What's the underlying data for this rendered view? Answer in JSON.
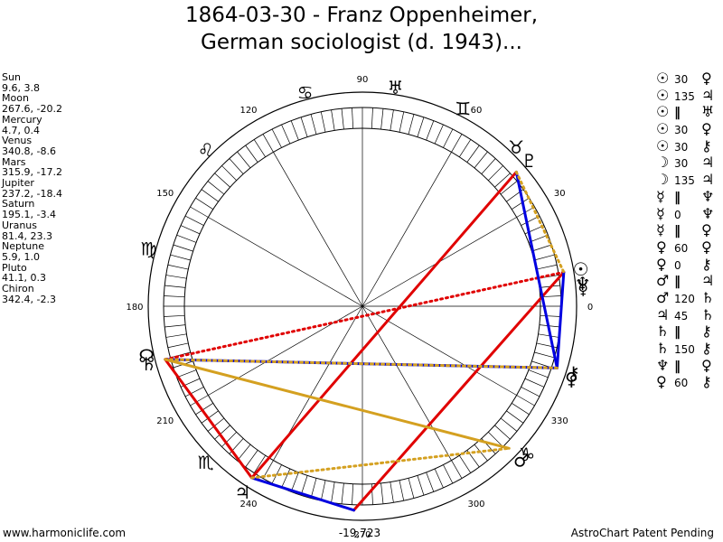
{
  "title_line1": "1864-03-30 - Franz Oppenheimer,",
  "title_line2": "German sociologist (d. 1943)...",
  "planets": [
    {
      "name": "Sun",
      "coords": "9.6, 3.8"
    },
    {
      "name": "Moon",
      "coords": "267.6, -20.2"
    },
    {
      "name": "Mercury",
      "coords": "4.7, 0.4"
    },
    {
      "name": "Venus",
      "coords": "340.8, -8.6"
    },
    {
      "name": "Mars",
      "coords": "315.9, -17.2"
    },
    {
      "name": "Jupiter",
      "coords": "237.2, -18.4"
    },
    {
      "name": "Saturn",
      "coords": "195.1, -3.4"
    },
    {
      "name": "Uranus",
      "coords": "81.4, 23.3"
    },
    {
      "name": "Neptune",
      "coords": "5.9, 1.0"
    },
    {
      "name": "Pluto",
      "coords": "41.1, 0.3"
    },
    {
      "name": "Chiron",
      "coords": "342.4, -2.3"
    }
  ],
  "aspects": [
    {
      "g1": "☉",
      "val": "30",
      "g2": "♀"
    },
    {
      "g1": "☉",
      "val": "135",
      "g2": "♃"
    },
    {
      "g1": "☉",
      "val": "‖",
      "g2": "♅"
    },
    {
      "g1": "☉",
      "val": "30",
      "g2": "♀"
    },
    {
      "g1": "☉",
      "val": "30",
      "g2": "⚷"
    },
    {
      "g1": "☽",
      "val": "30",
      "g2": "♃"
    },
    {
      "g1": "☽",
      "val": "135",
      "g2": "♃"
    },
    {
      "g1": "☿",
      "val": "‖",
      "g2": "♆"
    },
    {
      "g1": "☿",
      "val": "0",
      "g2": "♆"
    },
    {
      "g1": "☿",
      "val": "‖",
      "g2": "♀"
    },
    {
      "g1": "♀",
      "val": "60",
      "g2": "♀"
    },
    {
      "g1": "♀",
      "val": "0",
      "g2": "⚷"
    },
    {
      "g1": "♂",
      "val": "‖",
      "g2": "♃"
    },
    {
      "g1": "♂",
      "val": "120",
      "g2": "♄"
    },
    {
      "g1": "♃",
      "val": "45",
      "g2": "♄"
    },
    {
      "g1": "♄",
      "val": "‖",
      "g2": "⚷"
    },
    {
      "g1": "♄",
      "val": "150",
      "g2": "⚷"
    },
    {
      "g1": "♆",
      "val": "‖",
      "g2": "♀"
    },
    {
      "g1": "♀",
      "val": "60",
      "g2": "⚷"
    }
  ],
  "degree_labels": [
    {
      "deg": 0,
      "text": "0"
    },
    {
      "deg": 30,
      "text": "30"
    },
    {
      "deg": 60,
      "text": "60"
    },
    {
      "deg": 90,
      "text": "90"
    },
    {
      "deg": 120,
      "text": "120"
    },
    {
      "deg": 150,
      "text": "150"
    },
    {
      "deg": 180,
      "text": "180"
    },
    {
      "deg": 210,
      "text": "210"
    },
    {
      "deg": 240,
      "text": "240"
    },
    {
      "deg": 270,
      "text": "270"
    },
    {
      "deg": 300,
      "text": "300"
    },
    {
      "deg": 330,
      "text": "330"
    }
  ],
  "bottom_readout": "-19,723",
  "footer_left": "www.harmoniclife.com",
  "footer_right": "AstroChart Patent Pending",
  "colors": {
    "red": "#e00000",
    "blue": "#0000e0",
    "gold": "#d4a020",
    "ring": "#000000"
  },
  "wheel_glyphs": [
    {
      "deg": 81.4,
      "glyph": "♅",
      "name": "uranus-glyph"
    },
    {
      "deg": 63,
      "glyph": "♊",
      "name": "gemini-sign-glyph"
    },
    {
      "deg": 105,
      "glyph": "♋",
      "name": "cancer-sign-glyph"
    },
    {
      "deg": 135,
      "glyph": "♌",
      "name": "leo-sign-glyph"
    },
    {
      "deg": 165,
      "glyph": "♍",
      "name": "virgo-sign-glyph"
    },
    {
      "deg": 225,
      "glyph": "♏",
      "name": "scorpio-sign-glyph"
    },
    {
      "deg": 237.2,
      "glyph": "♃",
      "name": "jupiter-glyph"
    },
    {
      "deg": 195.1,
      "glyph": "♄",
      "name": "saturn-glyph"
    },
    {
      "deg": 193,
      "glyph": "☊",
      "name": "node-glyph"
    },
    {
      "deg": 41.1,
      "glyph": "♇",
      "name": "pluto-glyph"
    },
    {
      "deg": 46,
      "glyph": "♉",
      "name": "taurus-sign-glyph"
    },
    {
      "deg": 9.6,
      "glyph": "☉",
      "name": "sun-glyph"
    },
    {
      "deg": 4.7,
      "glyph": "☿",
      "name": "mercury-glyph"
    },
    {
      "deg": 5.9,
      "glyph": "♆",
      "name": "neptune-glyph"
    },
    {
      "deg": 342.4,
      "glyph": "⚷",
      "name": "chiron-glyph"
    },
    {
      "deg": 340.8,
      "glyph": "♀",
      "name": "venus-glyph"
    },
    {
      "deg": 318,
      "glyph": "♑",
      "name": "capricorn-sign-glyph"
    },
    {
      "deg": 315.9,
      "glyph": "♂",
      "name": "mars-glyph"
    }
  ],
  "aspect_lines": [
    {
      "from": 41.1,
      "to": 237.2,
      "color": "red",
      "style": "solid"
    },
    {
      "from": 237.2,
      "to": 195.1,
      "color": "red",
      "style": "solid"
    },
    {
      "from": 195.1,
      "to": 9.6,
      "color": "red",
      "style": "dotted"
    },
    {
      "from": 267.6,
      "to": 9.6,
      "color": "red",
      "style": "solid"
    },
    {
      "from": 41.1,
      "to": 342.4,
      "color": "blue",
      "style": "solid"
    },
    {
      "from": 9.6,
      "to": 342.4,
      "color": "blue",
      "style": "solid"
    },
    {
      "from": 195.1,
      "to": 342.4,
      "color": "blue",
      "style": "solid"
    },
    {
      "from": 237.2,
      "to": 267.6,
      "color": "blue",
      "style": "solid"
    },
    {
      "from": 195.1,
      "to": 315.9,
      "color": "gold",
      "style": "solid"
    },
    {
      "from": 237.2,
      "to": 315.9,
      "color": "gold",
      "style": "dotted"
    },
    {
      "from": 41.1,
      "to": 9.6,
      "color": "gold",
      "style": "dotted"
    },
    {
      "from": 342.4,
      "to": 195.1,
      "color": "gold",
      "style": "dotted"
    }
  ]
}
